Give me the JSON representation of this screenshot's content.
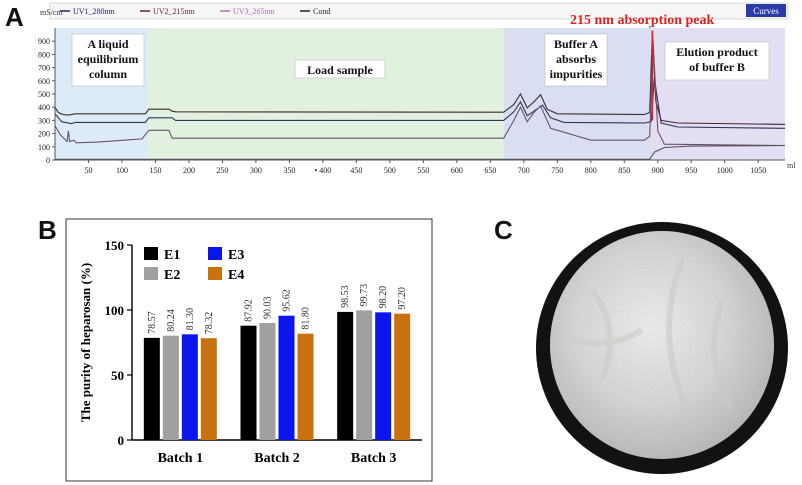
{
  "panels": {
    "a": "A",
    "b": "B",
    "c": "C"
  },
  "chart_data": [
    {
      "type": "line",
      "id": "chromatogram",
      "yunit": "mS/cm",
      "xunit": "ml",
      "legend": [
        "UV1_280nm",
        "UV2_215nm",
        "UV3_265nm",
        "Cond"
      ],
      "legend_colors": [
        "#1f1f6b",
        "#6b1f2f",
        "#b06ab0",
        "#222222"
      ],
      "curves_label": "Curves",
      "xlim": [
        0,
        1090
      ],
      "ylim": [
        0,
        1000
      ],
      "xticks": [
        50,
        100,
        150,
        200,
        250,
        300,
        350,
        400,
        450,
        500,
        550,
        600,
        650,
        700,
        750,
        800,
        850,
        900,
        950,
        1000,
        1050
      ],
      "xtick_labels": [
        "50",
        "100",
        "150",
        "200",
        "250",
        "300",
        "350",
        "• 400",
        "450",
        "500",
        "550",
        "600",
        "650",
        "700",
        "750",
        "800",
        "850",
        "900",
        "950",
        "1000",
        "1050"
      ],
      "yticks": [
        0,
        100,
        200,
        300,
        400,
        500,
        600,
        700,
        800,
        900
      ],
      "regions": [
        {
          "label_lines": [
            "A liquid",
            "equilibrium",
            "column"
          ],
          "x0": 0,
          "x1": 140,
          "color": "#dcebf7"
        },
        {
          "label_lines": [
            "Load sample"
          ],
          "x0": 140,
          "x1": 670,
          "color": "#e2f1df"
        },
        {
          "label_lines": [
            "Buffer A",
            "absorbs",
            "impurities"
          ],
          "x0": 670,
          "x1": 890,
          "color": "#d9def3"
        },
        {
          "label_lines": [
            "Elution product",
            "of buffer B"
          ],
          "x0": 890,
          "x1": 1090,
          "color": "#e3def2"
        }
      ],
      "annotation": "215 nm absorption peak",
      "series": [
        {
          "name": "UV2_215nm",
          "color": "#3a2a2a",
          "x": [
            0,
            5,
            12,
            20,
            30,
            135,
            140,
            170,
            175,
            180,
            670,
            685,
            695,
            705,
            715,
            725,
            735,
            750,
            880,
            888,
            892,
            897,
            905,
            930,
            1090
          ],
          "y": [
            400,
            360,
            345,
            340,
            350,
            350,
            385,
            385,
            370,
            365,
            362,
            420,
            500,
            395,
            440,
            495,
            385,
            350,
            345,
            360,
            980,
            450,
            300,
            280,
            270
          ]
        },
        {
          "name": "UV1_280nm",
          "color": "#33335a",
          "x": [
            0,
            10,
            25,
            30,
            135,
            140,
            175,
            180,
            670,
            685,
            695,
            705,
            718,
            728,
            740,
            760,
            880,
            890,
            895,
            905,
            930,
            1090
          ],
          "y": [
            350,
            290,
            275,
            285,
            285,
            320,
            320,
            300,
            300,
            365,
            440,
            335,
            380,
            415,
            320,
            285,
            280,
            290,
            620,
            280,
            250,
            240
          ]
        },
        {
          "name": "UV3_265nm",
          "color": "#6a5070",
          "x": [
            0,
            8,
            18,
            20,
            22,
            28,
            32,
            60,
            130,
            140,
            170,
            175,
            670,
            685,
            695,
            705,
            715,
            725,
            740,
            800,
            880,
            888,
            893,
            900,
            910,
            1090
          ],
          "y": [
            260,
            190,
            140,
            220,
            140,
            150,
            130,
            135,
            160,
            225,
            225,
            165,
            165,
            300,
            400,
            290,
            360,
            410,
            240,
            150,
            150,
            180,
            900,
            220,
            120,
            110
          ]
        },
        {
          "name": "Cond",
          "color": "#555555",
          "x": [
            0,
            880,
            888,
            895,
            910,
            950,
            1090
          ],
          "y": [
            5,
            5,
            5,
            60,
            95,
            105,
            110
          ]
        }
      ]
    },
    {
      "type": "bar",
      "id": "purity",
      "ylabel": "The purity of heparosan (%)",
      "ylim": [
        0,
        150
      ],
      "yticks": [
        0,
        50,
        100,
        150
      ],
      "categories": [
        "Batch 1",
        "Batch 2",
        "Batch 3"
      ],
      "series": [
        {
          "name": "E1",
          "color": "#000000",
          "values": [
            78.57,
            87.92,
            98.53
          ]
        },
        {
          "name": "E2",
          "color": "#a0a0a0",
          "values": [
            80.24,
            90.03,
            99.73
          ]
        },
        {
          "name": "E3",
          "color": "#0b16ef",
          "values": [
            81.3,
            95.62,
            98.2
          ]
        },
        {
          "name": "E4",
          "color": "#c8720f",
          "values": [
            78.32,
            81.8,
            97.2
          ]
        }
      ],
      "value_labels": [
        [
          "78.57",
          "80.24",
          "81.30",
          "78.32"
        ],
        [
          "87.92",
          "90.03",
          "95.62",
          "81.80"
        ],
        [
          "98.53",
          "99.73",
          "98.20",
          "97.20"
        ]
      ]
    }
  ]
}
